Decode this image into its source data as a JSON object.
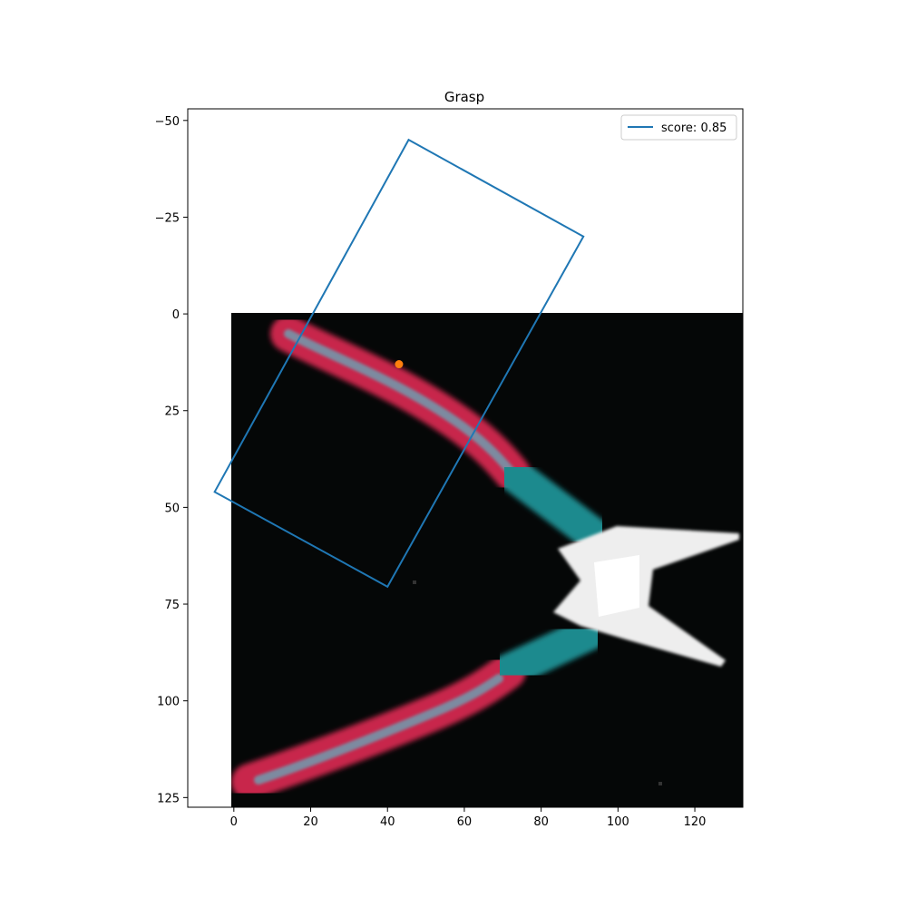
{
  "chart_data": {
    "type": "scatter",
    "title": "Grasp",
    "xlabel": "",
    "ylabel": "",
    "xlim": [
      -12,
      132.5
    ],
    "ylim": [
      127.5,
      -53
    ],
    "y_inverted": true,
    "grid": false,
    "xticks": [
      0,
      20,
      40,
      60,
      80,
      100,
      120
    ],
    "yticks": [
      -50,
      -25,
      0,
      25,
      50,
      75,
      100,
      125
    ],
    "background_image": {
      "description_name": "pliers-photo",
      "extent": [
        0,
        132.5,
        127.5,
        0
      ]
    },
    "grasp_rectangle": {
      "name": "score: 0.85",
      "color": "#1f77b4",
      "corners": [
        [
          45.5,
          -45
        ],
        [
          91,
          -20
        ],
        [
          40,
          70.5
        ],
        [
          -5,
          46
        ]
      ]
    },
    "grasp_center": {
      "color": "#ff7f0e",
      "x": 43,
      "y": 13
    },
    "legend": {
      "placement": "top-right",
      "entries": [
        "score: 0.85"
      ]
    }
  }
}
